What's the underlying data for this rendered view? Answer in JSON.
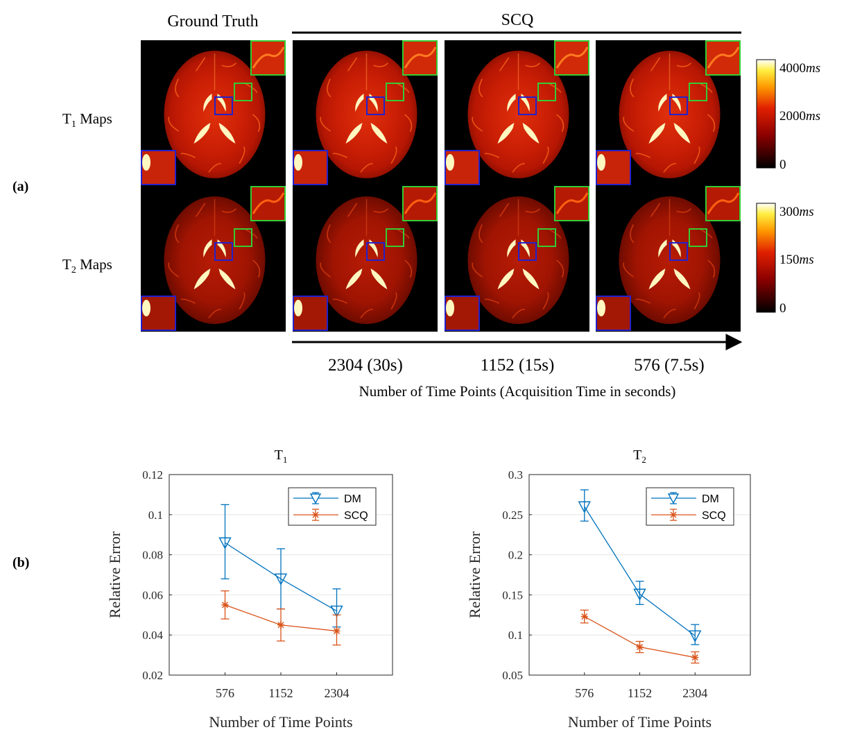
{
  "panel_a": {
    "label": "(a)",
    "gt_header": "Ground Truth",
    "scq_header": "SCQ",
    "row_labels": [
      {
        "main": "T",
        "sub": "1",
        "rest": " Maps"
      },
      {
        "main": "T",
        "sub": "2",
        "rest": " Maps"
      }
    ],
    "time_points": [
      "2304 (30s)",
      "1152 (15s)",
      "576 (7.5s)"
    ],
    "xaxis_caption": "Number of Time Points (Acquisition Time in seconds)",
    "colorbar_t1": {
      "top": "4000",
      "mid": "2000",
      "unit": "ms",
      "bottom": "0"
    },
    "colorbar_t2": {
      "top": "300",
      "mid": "150",
      "unit": "ms",
      "bottom": "0"
    },
    "colors": {
      "roi_green": "#33cc33",
      "roi_blue": "#2222cc"
    }
  },
  "panel_b": {
    "label": "(b)"
  },
  "chart_data": [
    {
      "type": "line",
      "title_main": "T",
      "title_sub": "1",
      "xlabel": "Number of Time Points",
      "ylabel": "Relative Error",
      "categories": [
        "576",
        "1152",
        "2304"
      ],
      "ylim": [
        0.02,
        0.12
      ],
      "yticks": [
        0.02,
        0.04,
        0.06,
        0.08,
        0.1,
        0.12
      ],
      "ytick_labels": [
        "0.02",
        "0.04",
        "0.06",
        "0.08",
        "0.1",
        "0.12"
      ],
      "grid": true,
      "legend": "top-right",
      "series": [
        {
          "name": "DM",
          "values": [
            0.086,
            0.068,
            0.052
          ],
          "err_low": [
            0.068,
            0.053,
            0.044
          ],
          "err_high": [
            0.105,
            0.083,
            0.063
          ],
          "color": "#0072BD",
          "marker": "triangle-down"
        },
        {
          "name": "SCQ",
          "values": [
            0.055,
            0.045,
            0.042
          ],
          "err_low": [
            0.048,
            0.037,
            0.035
          ],
          "err_high": [
            0.062,
            0.053,
            0.05
          ],
          "color": "#D95319",
          "marker": "asterisk"
        }
      ]
    },
    {
      "type": "line",
      "title_main": "T",
      "title_sub": "2",
      "xlabel": "Number of Time Points",
      "ylabel": "Relative Error",
      "categories": [
        "576",
        "1152",
        "2304"
      ],
      "ylim": [
        0.05,
        0.3
      ],
      "yticks": [
        0.05,
        0.1,
        0.15,
        0.2,
        0.25,
        0.3
      ],
      "ytick_labels": [
        "0.05",
        "0.1",
        "0.15",
        "0.2",
        "0.25",
        "0.3"
      ],
      "grid": true,
      "legend": "top-right",
      "series": [
        {
          "name": "DM",
          "values": [
            0.26,
            0.151,
            0.099
          ],
          "err_low": [
            0.242,
            0.138,
            0.088
          ],
          "err_high": [
            0.281,
            0.167,
            0.113
          ],
          "color": "#0072BD",
          "marker": "triangle-down"
        },
        {
          "name": "SCQ",
          "values": [
            0.123,
            0.085,
            0.072
          ],
          "err_low": [
            0.115,
            0.078,
            0.065
          ],
          "err_high": [
            0.131,
            0.092,
            0.079
          ],
          "color": "#D95319",
          "marker": "asterisk"
        }
      ]
    }
  ]
}
